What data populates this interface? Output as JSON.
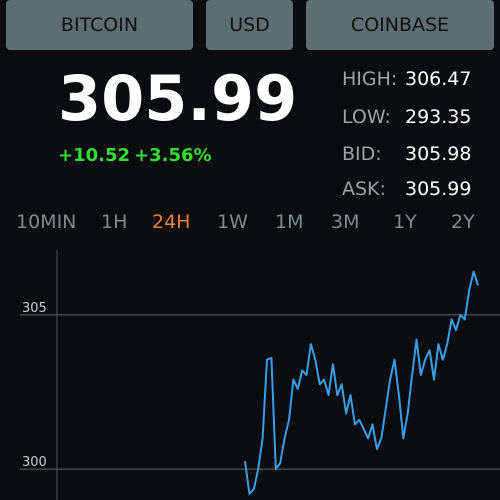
{
  "header": {
    "buttons": [
      "BITCOIN",
      "USD",
      "COINBASE"
    ]
  },
  "price": {
    "last": "305.99",
    "change": "+10.52",
    "change_pct": "+3.56%"
  },
  "stats": [
    {
      "label": "HIGH:",
      "value": "306.47"
    },
    {
      "label": "LOW:",
      "value": "293.35"
    },
    {
      "label": "BID:",
      "value": "305.98"
    },
    {
      "label": "ASK:",
      "value": "305.99"
    }
  ],
  "tabs": {
    "items": [
      "10MIN",
      "1H",
      "24H",
      "1W",
      "1M",
      "3M",
      "1Y",
      "2Y"
    ],
    "selected": 2
  },
  "chart_data": {
    "type": "line",
    "color": "#3a9ee8",
    "values": [
      300.26,
      299.2,
      299.35,
      300,
      301,
      303.55,
      303.6,
      300,
      300.2,
      301,
      301.6,
      302.9,
      302.6,
      303.2,
      303.05,
      304.05,
      303.55,
      302.75,
      302.9,
      302.4,
      303.4,
      302.4,
      302.75,
      301.8,
      302.4,
      301.45,
      301.6,
      301.3,
      301,
      301.45,
      300.65,
      301,
      301.95,
      302.9,
      303.55,
      302.4,
      301,
      301.8,
      303.05,
      304.2,
      303.05,
      303.55,
      303.85,
      302.9,
      304.05,
      303.55,
      304.05,
      304.85,
      304.5,
      305,
      304.85,
      305.8,
      306.4,
      305.95
    ],
    "ylim": [
      299,
      307.1
    ],
    "yticks": [
      300,
      305
    ],
    "grid": true
  }
}
